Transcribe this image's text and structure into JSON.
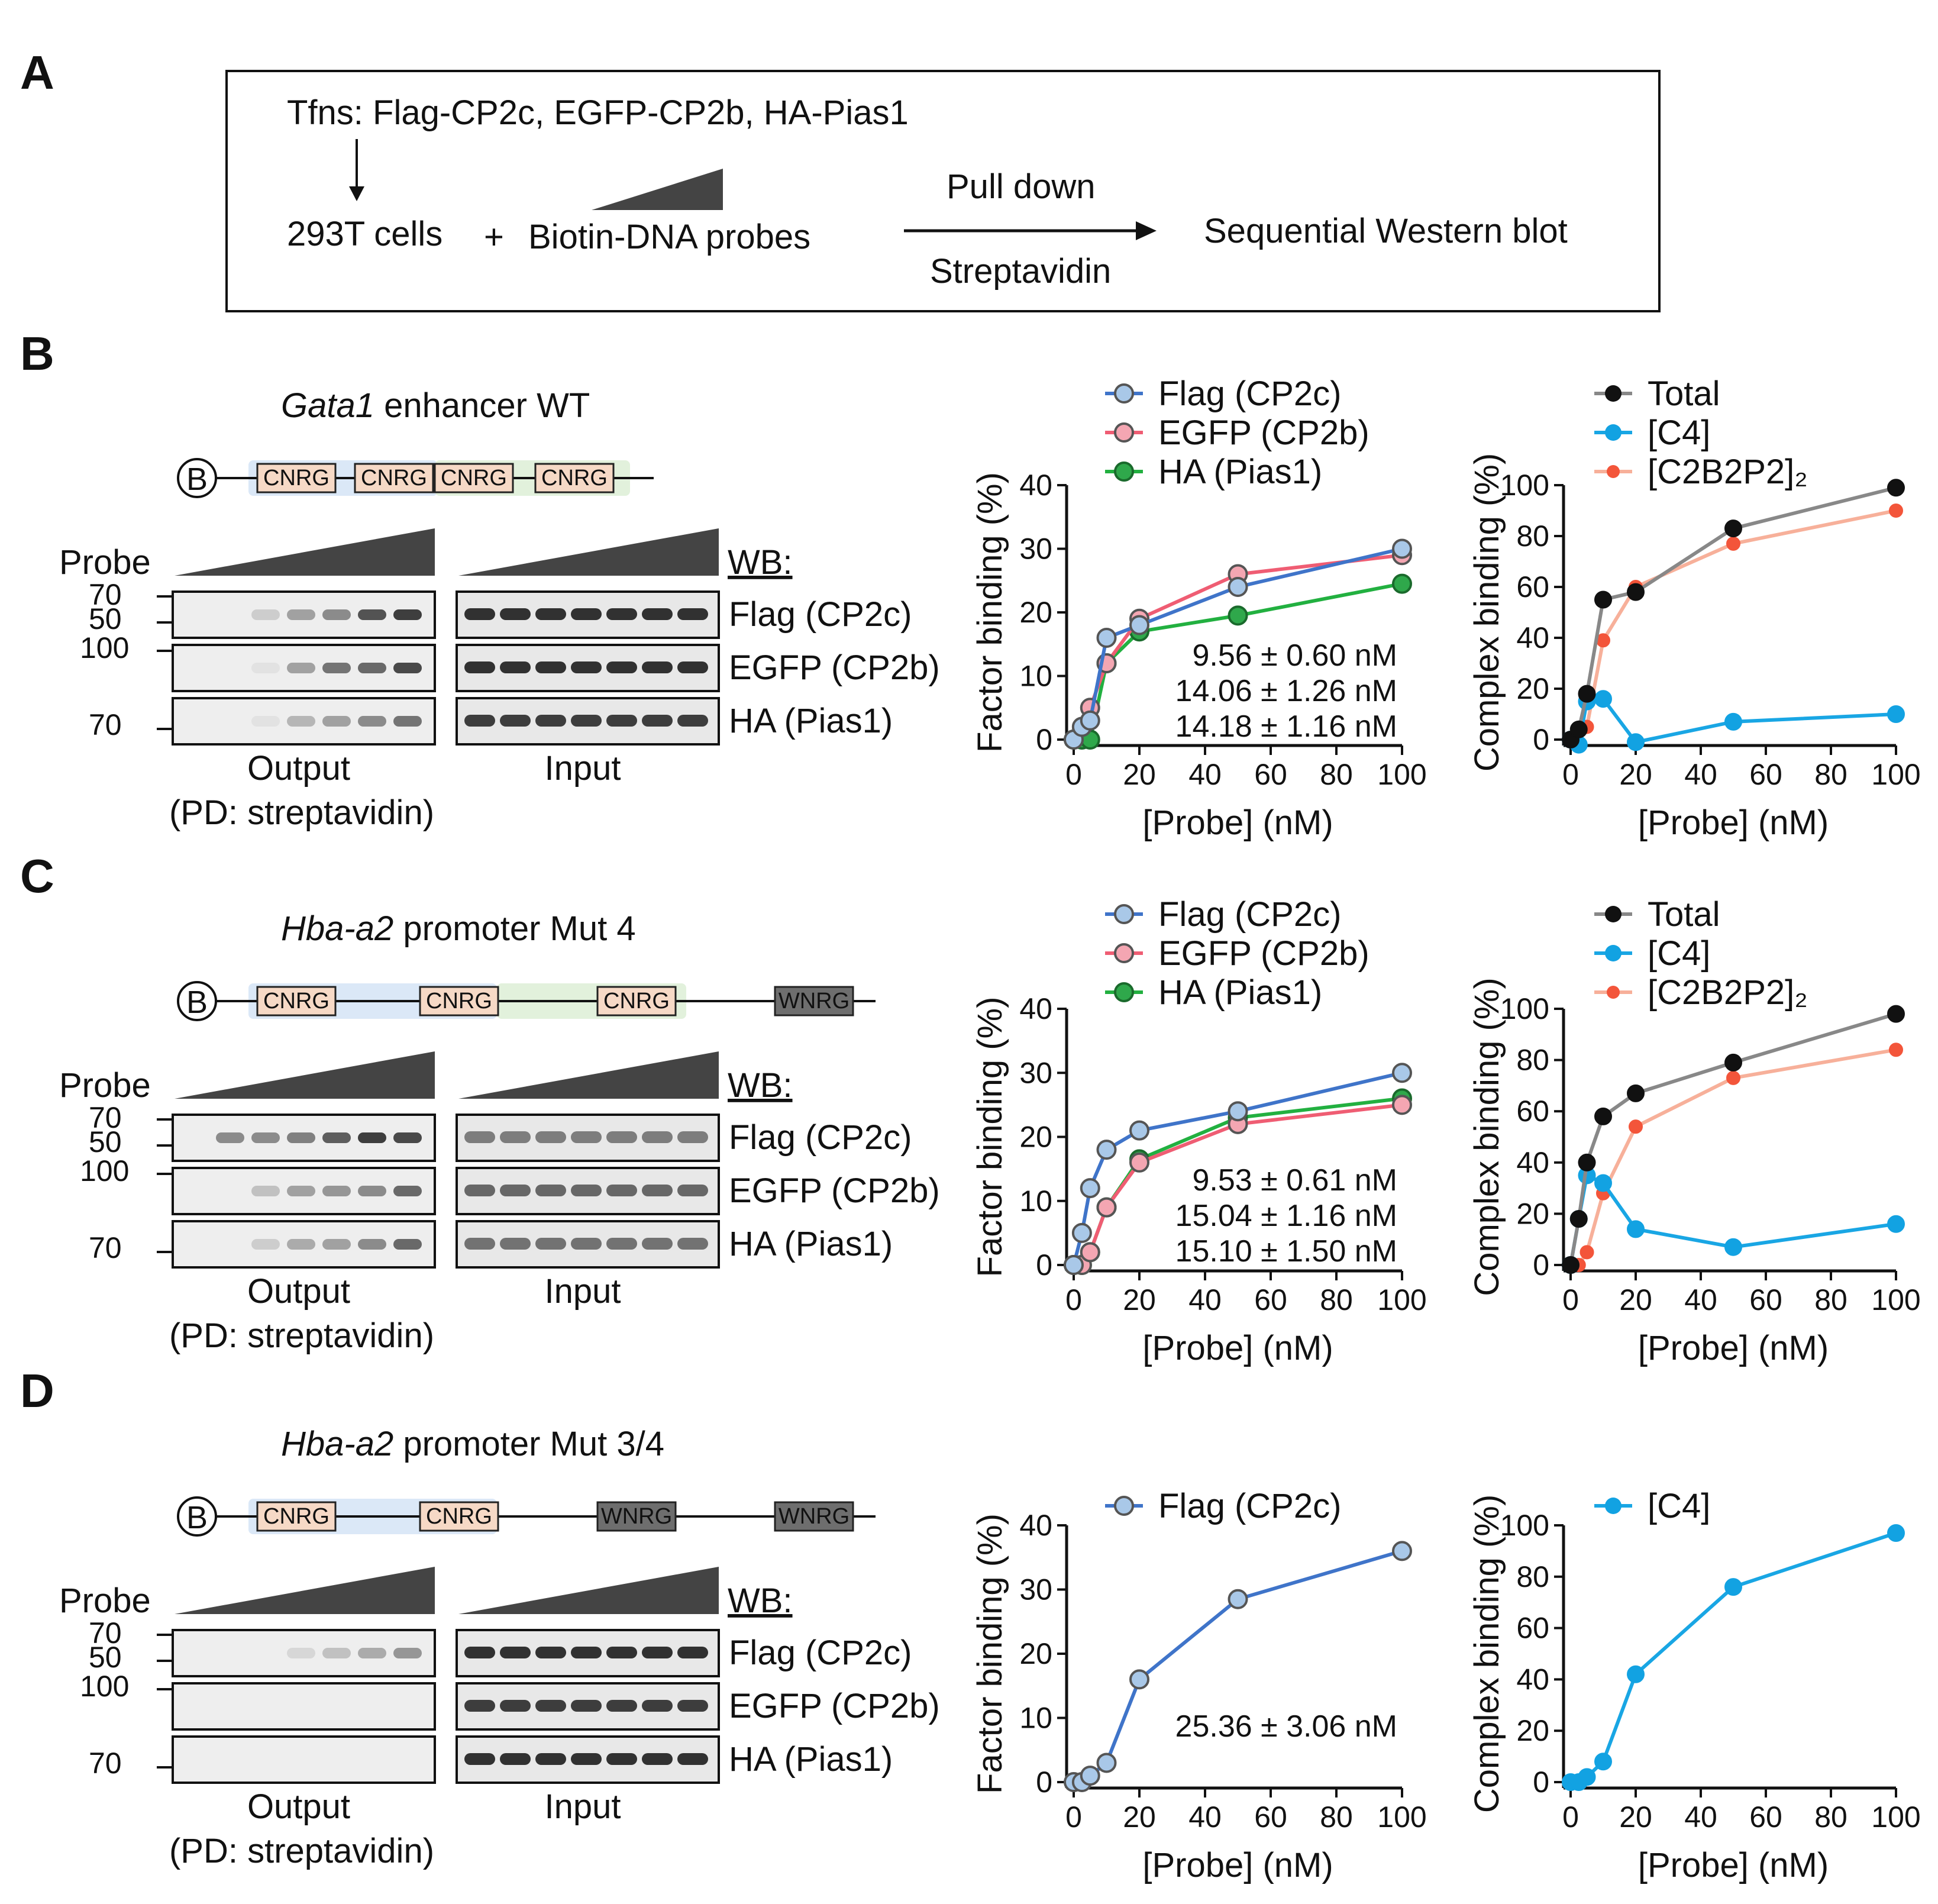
{
  "panel_labels": [
    "A",
    "B",
    "C",
    "D"
  ],
  "panelA": {
    "transfection": "Tfns: Flag-CP2c, EGFP-CP2b, HA-Pias1",
    "cells": "293T cells",
    "plus": "+",
    "probes": "Biotin-DNA probes",
    "pull_down": "Pull down",
    "streptavidin": "Streptavidin",
    "result": "Sequential Western blot"
  },
  "blot_labels": {
    "probe": "Probe",
    "wb": "WB:",
    "output": "Output",
    "pd": "(PD: streptavidin)",
    "input": "Input",
    "bands": [
      "Flag (CP2c)",
      "EGFP (CP2b)",
      "HA (Pias1)"
    ],
    "markers": [
      "70",
      "50",
      "100",
      "70"
    ]
  },
  "rows": [
    {
      "id": "B",
      "title_italic": "Gata1",
      "title_rest": " enhancer WT",
      "diagram": {
        "biotin": "B",
        "boxes": [
          "CNRG",
          "CNRG",
          "CNRG",
          "CNRG"
        ]
      },
      "factor_legend": [
        "Flag (CP2c)",
        "EGFP (CP2b)",
        "HA (Pias1)"
      ],
      "complex_legend": [
        "Total",
        "[C4]",
        "[C2B2P2]₂"
      ],
      "kd": [
        "9.56 ± 0.60 nM",
        "14.06 ± 1.26 nM",
        "14.18 ± 1.16 nM"
      ]
    },
    {
      "id": "C",
      "title_italic": "Hba-a2",
      "title_rest": " promoter Mut 4",
      "diagram": {
        "biotin": "B",
        "boxes": [
          "CNRG",
          "CNRG",
          "CNRG",
          "WNRG"
        ]
      },
      "factor_legend": [
        "Flag (CP2c)",
        "EGFP (CP2b)",
        "HA (Pias1)"
      ],
      "complex_legend": [
        "Total",
        "[C4]",
        "[C2B2P2]₂"
      ],
      "kd": [
        "9.53 ± 0.61 nM",
        "15.04 ± 1.16 nM",
        "15.10 ± 1.50 nM"
      ]
    },
    {
      "id": "D",
      "title_italic": "Hba-a2",
      "title_rest": " promoter Mut 3/4",
      "diagram": {
        "biotin": "B",
        "boxes": [
          "CNRG",
          "CNRG",
          "WNRG",
          "WNRG"
        ]
      },
      "factor_legend": [
        "Flag (CP2c)"
      ],
      "complex_legend": [
        "[C4]"
      ],
      "kd": [
        "25.36 ± 3.06 nM"
      ]
    }
  ],
  "colors": {
    "flag": "#4f7fc8",
    "egfp": "#e8566a",
    "ha": "#2aa84a",
    "total": "#111111",
    "c4": "#0aa0e0",
    "c2b2p2": "#f05a3c"
  },
  "chart_data": [
    {
      "type": "line",
      "title": "B factor binding",
      "xlabel": "[Probe] (nM)",
      "ylabel": "Factor binding (%)",
      "xlim": [
        0,
        100
      ],
      "ylim": [
        0,
        40
      ],
      "xticks": [
        0,
        20,
        40,
        60,
        80,
        100
      ],
      "yticks": [
        0,
        10,
        20,
        30,
        40
      ],
      "series": [
        {
          "name": "Flag (CP2c)",
          "x": [
            0,
            2.5,
            5,
            10,
            20,
            50,
            100
          ],
          "y": [
            0,
            2,
            3,
            16,
            18,
            24,
            30
          ]
        },
        {
          "name": "EGFP (CP2b)",
          "x": [
            0,
            2.5,
            5,
            10,
            20,
            50,
            100
          ],
          "y": [
            0,
            2,
            5,
            12,
            19,
            26,
            29
          ]
        },
        {
          "name": "HA (Pias1)",
          "x": [
            0,
            2.5,
            5,
            10,
            20,
            50,
            100
          ],
          "y": [
            0,
            0,
            0,
            12,
            17,
            19.5,
            24.5
          ]
        }
      ]
    },
    {
      "type": "line",
      "title": "B complex binding",
      "xlabel": "[Probe] (nM)",
      "ylabel": "Complex binding (%)",
      "xlim": [
        0,
        100
      ],
      "ylim": [
        0,
        100
      ],
      "xticks": [
        0,
        20,
        40,
        60,
        80,
        100
      ],
      "yticks": [
        0,
        20,
        40,
        60,
        80,
        100
      ],
      "series": [
        {
          "name": "Total",
          "x": [
            0,
            2.5,
            5,
            10,
            20,
            50,
            100
          ],
          "y": [
            0,
            4,
            18,
            55,
            58,
            83,
            99
          ]
        },
        {
          "name": "[C4]",
          "x": [
            0,
            2.5,
            5,
            10,
            20,
            50,
            100
          ],
          "y": [
            0,
            -2,
            15,
            16,
            -1,
            7,
            10
          ]
        },
        {
          "name": "[C2B2P2]₂",
          "x": [
            0,
            2.5,
            5,
            10,
            20,
            50,
            100
          ],
          "y": [
            0,
            4,
            5,
            39,
            60,
            77,
            90
          ]
        }
      ]
    },
    {
      "type": "line",
      "title": "C factor binding",
      "xlabel": "[Probe] (nM)",
      "ylabel": "Factor binding (%)",
      "xlim": [
        0,
        100
      ],
      "ylim": [
        0,
        40
      ],
      "xticks": [
        0,
        20,
        40,
        60,
        80,
        100
      ],
      "yticks": [
        0,
        10,
        20,
        30,
        40
      ],
      "series": [
        {
          "name": "Flag (CP2c)",
          "x": [
            0,
            2.5,
            5,
            10,
            20,
            50,
            100
          ],
          "y": [
            0,
            5,
            12,
            18,
            21,
            24,
            30
          ]
        },
        {
          "name": "EGFP (CP2b)",
          "x": [
            0,
            2.5,
            5,
            10,
            20,
            50,
            100
          ],
          "y": [
            0,
            0,
            2,
            9,
            16,
            22,
            25
          ]
        },
        {
          "name": "HA (Pias1)",
          "x": [
            0,
            2.5,
            5,
            10,
            20,
            50,
            100
          ],
          "y": [
            0,
            0,
            2,
            9,
            16.5,
            23,
            26
          ]
        }
      ]
    },
    {
      "type": "line",
      "title": "C complex binding",
      "xlabel": "[Probe] (nM)",
      "ylabel": "Complex binding (%)",
      "xlim": [
        0,
        100
      ],
      "ylim": [
        0,
        100
      ],
      "xticks": [
        0,
        20,
        40,
        60,
        80,
        100
      ],
      "yticks": [
        0,
        20,
        40,
        60,
        80,
        100
      ],
      "series": [
        {
          "name": "Total",
          "x": [
            0,
            2.5,
            5,
            10,
            20,
            50,
            100
          ],
          "y": [
            0,
            18,
            40,
            58,
            67,
            79,
            98
          ]
        },
        {
          "name": "[C4]",
          "x": [
            0,
            2.5,
            5,
            10,
            20,
            50,
            100
          ],
          "y": [
            0,
            18,
            35,
            32,
            14,
            7,
            16
          ]
        },
        {
          "name": "[C2B2P2]₂",
          "x": [
            0,
            2.5,
            5,
            10,
            20,
            50,
            100
          ],
          "y": [
            0,
            0,
            5,
            28,
            54,
            73,
            84
          ]
        }
      ]
    },
    {
      "type": "line",
      "title": "D factor binding",
      "xlabel": "[Probe] (nM)",
      "ylabel": "Factor binding (%)",
      "xlim": [
        0,
        100
      ],
      "ylim": [
        0,
        40
      ],
      "xticks": [
        0,
        20,
        40,
        60,
        80,
        100
      ],
      "yticks": [
        0,
        10,
        20,
        30,
        40
      ],
      "series": [
        {
          "name": "Flag (CP2c)",
          "x": [
            0,
            2.5,
            5,
            10,
            20,
            50,
            100
          ],
          "y": [
            0,
            0,
            1,
            3,
            16,
            28.5,
            36
          ]
        }
      ]
    },
    {
      "type": "line",
      "title": "D complex binding",
      "xlabel": "[Probe] (nM)",
      "ylabel": "Complex binding (%)",
      "xlim": [
        0,
        100
      ],
      "ylim": [
        0,
        100
      ],
      "xticks": [
        0,
        20,
        40,
        60,
        80,
        100
      ],
      "yticks": [
        0,
        20,
        40,
        60,
        80,
        100
      ],
      "series": [
        {
          "name": "[C4]",
          "x": [
            0,
            2.5,
            5,
            10,
            20,
            50,
            100
          ],
          "y": [
            0,
            0,
            2,
            8,
            42,
            76,
            97
          ]
        }
      ]
    }
  ]
}
